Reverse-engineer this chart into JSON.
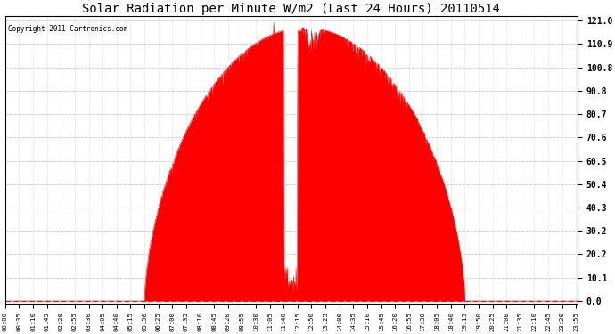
{
  "title": "Solar Radiation per Minute W/m2 (Last 24 Hours) 20110514",
  "copyright": "Copyright 2011 Cartronics.com",
  "bar_color": "#ff0000",
  "background_color": "#ffffff",
  "plot_bg_color": "#ffffff",
  "grid_color": "#b0b0b0",
  "yticks": [
    0.0,
    10.1,
    20.2,
    30.2,
    40.3,
    50.4,
    60.5,
    70.6,
    80.7,
    90.8,
    100.8,
    110.9,
    121.0
  ],
  "ymin": 0.0,
  "ymax": 121.0,
  "xtick_labels": [
    "00:00",
    "00:35",
    "01:10",
    "01:45",
    "02:20",
    "02:55",
    "03:30",
    "04:05",
    "04:40",
    "05:15",
    "05:50",
    "06:25",
    "07:00",
    "07:35",
    "08:10",
    "08:45",
    "09:20",
    "09:55",
    "10:30",
    "11:05",
    "11:40",
    "12:15",
    "12:50",
    "13:25",
    "14:00",
    "14:35",
    "15:10",
    "15:45",
    "16:20",
    "16:55",
    "17:30",
    "18:05",
    "18:40",
    "19:15",
    "19:50",
    "20:25",
    "21:00",
    "21:35",
    "22:10",
    "22:45",
    "23:20",
    "23:55"
  ],
  "num_points": 1440,
  "figwidth": 6.9,
  "figheight": 3.75,
  "dpi": 100
}
